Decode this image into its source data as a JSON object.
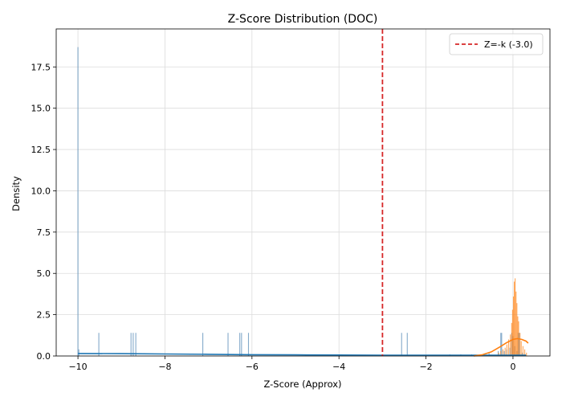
{
  "chart_data": {
    "type": "histogram",
    "title": "Z-Score Distribution (DOC)",
    "xlabel": "Z-Score (Approx)",
    "ylabel": "Density",
    "xlim": [
      -10.5,
      0.85
    ],
    "ylim": [
      0,
      19.8
    ],
    "x_ticks": [
      -10,
      -8,
      -6,
      -4,
      -2,
      0
    ],
    "x_tick_labels": [
      "−10",
      "−8",
      "−6",
      "−4",
      "−2",
      "0"
    ],
    "y_ticks": [
      0,
      2.5,
      5,
      7.5,
      10,
      12.5,
      15,
      17.5
    ],
    "y_tick_labels": [
      "0.0",
      "2.5",
      "5.0",
      "7.5",
      "10.0",
      "12.5",
      "15.0",
      "17.5"
    ],
    "grid": true,
    "legend_position": "top-right",
    "legend": [
      {
        "label": "Z=-k (-3.0)",
        "style": "dashed",
        "color": "#d62728"
      }
    ],
    "threshold": {
      "x": -3.0,
      "color": "#d62728",
      "style": "dashed"
    },
    "bar_width": 0.02,
    "series": [
      {
        "color": "#5b8db8",
        "bars": [
          {
            "x": -10.0,
            "y": 18.7
          },
          {
            "x": -9.98,
            "y": 0.4
          },
          {
            "x": -9.52,
            "y": 1.4
          },
          {
            "x": -8.78,
            "y": 1.4
          },
          {
            "x": -8.73,
            "y": 1.4
          },
          {
            "x": -8.67,
            "y": 1.4
          },
          {
            "x": -7.13,
            "y": 1.4
          },
          {
            "x": -6.55,
            "y": 1.4
          },
          {
            "x": -6.28,
            "y": 1.4
          },
          {
            "x": -6.24,
            "y": 1.4
          },
          {
            "x": -6.08,
            "y": 1.4
          },
          {
            "x": -2.56,
            "y": 1.4
          },
          {
            "x": -2.43,
            "y": 1.4
          },
          {
            "x": -1.45,
            "y": 0.1
          },
          {
            "x": -1.2,
            "y": 0.1
          },
          {
            "x": -0.95,
            "y": 0.1
          },
          {
            "x": -0.75,
            "y": 0.1
          },
          {
            "x": -0.55,
            "y": 0.2
          },
          {
            "x": -0.34,
            "y": 0.3
          },
          {
            "x": -0.28,
            "y": 1.4
          },
          {
            "x": -0.26,
            "y": 1.4
          },
          {
            "x": -0.2,
            "y": 0.3
          },
          {
            "x": -0.14,
            "y": 0.4
          },
          {
            "x": -0.07,
            "y": 0.5
          },
          {
            "x": -0.03,
            "y": 1.4
          },
          {
            "x": 0.0,
            "y": 1.2
          },
          {
            "x": 0.04,
            "y": 0.6
          },
          {
            "x": 0.09,
            "y": 0.3
          },
          {
            "x": 0.12,
            "y": 1.4
          },
          {
            "x": 0.15,
            "y": 1.4
          },
          {
            "x": 0.22,
            "y": 0.2
          },
          {
            "x": 0.28,
            "y": 0.1
          }
        ],
        "kde": [
          [
            -10.0,
            0.15
          ],
          [
            -9.0,
            0.14
          ],
          [
            -8.0,
            0.12
          ],
          [
            -7.0,
            0.1
          ],
          [
            -6.0,
            0.08
          ],
          [
            -5.0,
            0.07
          ],
          [
            -4.0,
            0.06
          ],
          [
            -3.0,
            0.05
          ],
          [
            -2.0,
            0.05
          ],
          [
            -1.0,
            0.05
          ],
          [
            -0.5,
            0.05
          ],
          [
            0.0,
            0.05
          ],
          [
            0.3,
            0.05
          ]
        ]
      },
      {
        "color": "#ff7f0e",
        "bars": [
          {
            "x": -0.33,
            "y": 0.2
          },
          {
            "x": -0.28,
            "y": 0.3
          },
          {
            "x": -0.23,
            "y": 0.4
          },
          {
            "x": -0.18,
            "y": 0.5
          },
          {
            "x": -0.14,
            "y": 0.7
          },
          {
            "x": -0.1,
            "y": 1.0
          },
          {
            "x": -0.06,
            "y": 1.3
          },
          {
            "x": -0.03,
            "y": 2.0
          },
          {
            "x": -0.01,
            "y": 2.8
          },
          {
            "x": 0.01,
            "y": 3.6
          },
          {
            "x": 0.03,
            "y": 4.5
          },
          {
            "x": 0.05,
            "y": 4.7
          },
          {
            "x": 0.07,
            "y": 3.9
          },
          {
            "x": 0.09,
            "y": 3.2
          },
          {
            "x": 0.11,
            "y": 2.4
          },
          {
            "x": 0.13,
            "y": 2.1
          },
          {
            "x": 0.16,
            "y": 1.4
          },
          {
            "x": 0.19,
            "y": 0.9
          },
          {
            "x": 0.23,
            "y": 0.6
          },
          {
            "x": 0.27,
            "y": 0.4
          },
          {
            "x": 0.31,
            "y": 0.2
          }
        ],
        "kde": [
          [
            -0.9,
            0.0
          ],
          [
            -0.7,
            0.08
          ],
          [
            -0.5,
            0.25
          ],
          [
            -0.3,
            0.55
          ],
          [
            -0.15,
            0.8
          ],
          [
            0.0,
            1.0
          ],
          [
            0.1,
            1.05
          ],
          [
            0.2,
            1.0
          ],
          [
            0.3,
            0.9
          ],
          [
            0.35,
            0.78
          ]
        ]
      }
    ]
  }
}
